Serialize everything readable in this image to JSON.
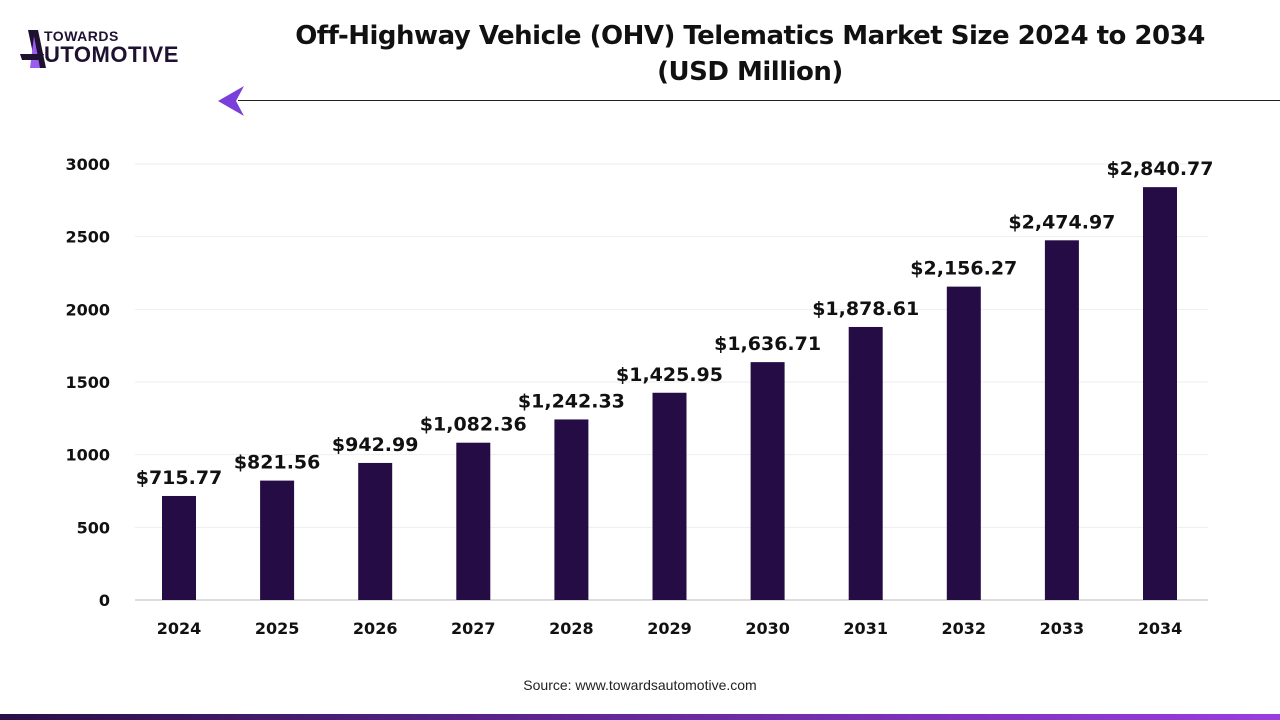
{
  "brand": {
    "line1": "TOWARDS",
    "line2": "UTOMOTIVE",
    "logo_text": "TOWARDS AUTOMOTIVE"
  },
  "source": "Source: www.towardsautomotive.com",
  "colors": {
    "bar": "#250c45",
    "accent": "#7b3fd9",
    "footer_start": "#2a0f45",
    "footer_end": "#9b3ee0"
  },
  "chart_data": {
    "type": "bar",
    "title": "Off-Highway Vehicle (OHV) Telematics Market Size 2024 to 2034",
    "subtitle": "(USD Million)",
    "categories": [
      "2024",
      "2025",
      "2026",
      "2027",
      "2028",
      "2029",
      "2030",
      "2031",
      "2032",
      "2033",
      "2034"
    ],
    "values": [
      715.77,
      821.56,
      942.99,
      1082.36,
      1242.33,
      1425.95,
      1636.71,
      1878.61,
      2156.27,
      2474.97,
      2840.77
    ],
    "data_labels": [
      "$715.77",
      "$821.56",
      "$942.99",
      "$1,082.36",
      "$1,242.33",
      "$1,425.95",
      "$1,636.71",
      "$1,878.61",
      "$2,156.27",
      "$2,474.97",
      "$2,840.77"
    ],
    "yticks": [
      0,
      500,
      1000,
      1500,
      2000,
      2500,
      3000
    ],
    "ylim": [
      0,
      3000
    ],
    "xlabel": "",
    "ylabel": "",
    "grid": true,
    "legend": "none"
  }
}
